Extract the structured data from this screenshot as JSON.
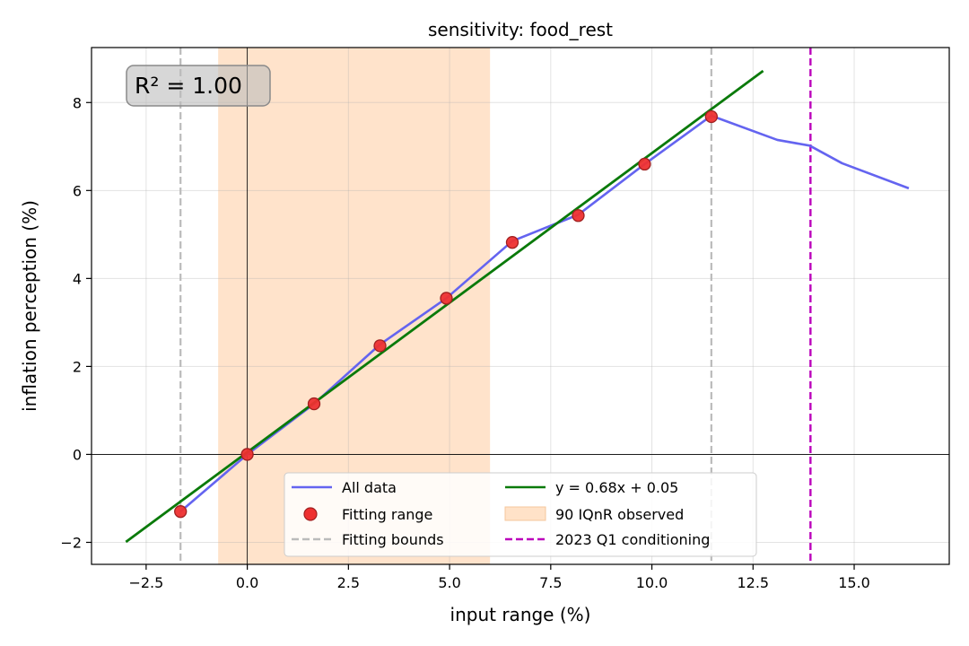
{
  "chart_data": {
    "type": "line",
    "title": "sensitivity: food_rest",
    "xlabel": "input range (%)",
    "ylabel": "inflation perception (%)",
    "xlim": [
      -3.85,
      17.35
    ],
    "ylim": [
      -2.5,
      9.25
    ],
    "x_ticks": [
      -2.5,
      0.0,
      2.5,
      5.0,
      7.5,
      10.0,
      12.5,
      15.0
    ],
    "x_tick_labels": [
      "−2.5",
      "0.0",
      "2.5",
      "5.0",
      "7.5",
      "10.0",
      "12.5",
      "15.0"
    ],
    "y_ticks": [
      -2,
      0,
      2,
      4,
      6,
      8
    ],
    "y_tick_labels": [
      "−2",
      "0",
      "2",
      "4",
      "6",
      "8"
    ],
    "grid": true,
    "annotation": "R² = 1.00",
    "series": [
      {
        "name": "All data",
        "kind": "line",
        "color": "#6464f0",
        "x": [
          -1.65,
          0.0,
          1.65,
          3.28,
          4.92,
          6.55,
          8.18,
          9.82,
          11.47,
          13.1,
          13.9,
          14.7,
          16.35
        ],
        "y": [
          -1.3,
          0.0,
          1.15,
          2.5,
          3.55,
          4.85,
          5.45,
          6.6,
          7.7,
          7.15,
          7.02,
          6.62,
          6.05
        ]
      },
      {
        "name": "Fitting range",
        "kind": "scatter",
        "color": "#ee3030",
        "edge_color": "#a02020",
        "x": [
          -1.65,
          0.0,
          1.65,
          3.28,
          4.92,
          6.55,
          8.18,
          9.82,
          11.47
        ],
        "y": [
          -1.3,
          0.0,
          1.15,
          2.47,
          3.55,
          4.82,
          5.43,
          6.6,
          7.68
        ]
      },
      {
        "name": "y = 0.68x + 0.05",
        "kind": "fit",
        "color": "#0a7a0a",
        "slope": 0.68,
        "intercept": 0.05,
        "x_range": [
          -3.0,
          12.75
        ]
      }
    ],
    "fitting_bounds": {
      "name": "Fitting bounds",
      "color": "#bbbbbb",
      "x": [
        -1.65,
        11.47
      ]
    },
    "shaded_band": {
      "name": "90 IQnR observed",
      "color": "#ffe2c8",
      "x": [
        -0.72,
        6.0
      ]
    },
    "conditioning_line": {
      "name": "2023 Q1 conditioning",
      "color": "#bb00bb",
      "x": 13.92
    },
    "legend": {
      "position": "bottom-center",
      "entries": [
        "All data",
        "Fitting range",
        "Fitting bounds",
        "y = 0.68x + 0.05",
        "90 IQnR observed",
        "2023 Q1 conditioning"
      ]
    }
  }
}
